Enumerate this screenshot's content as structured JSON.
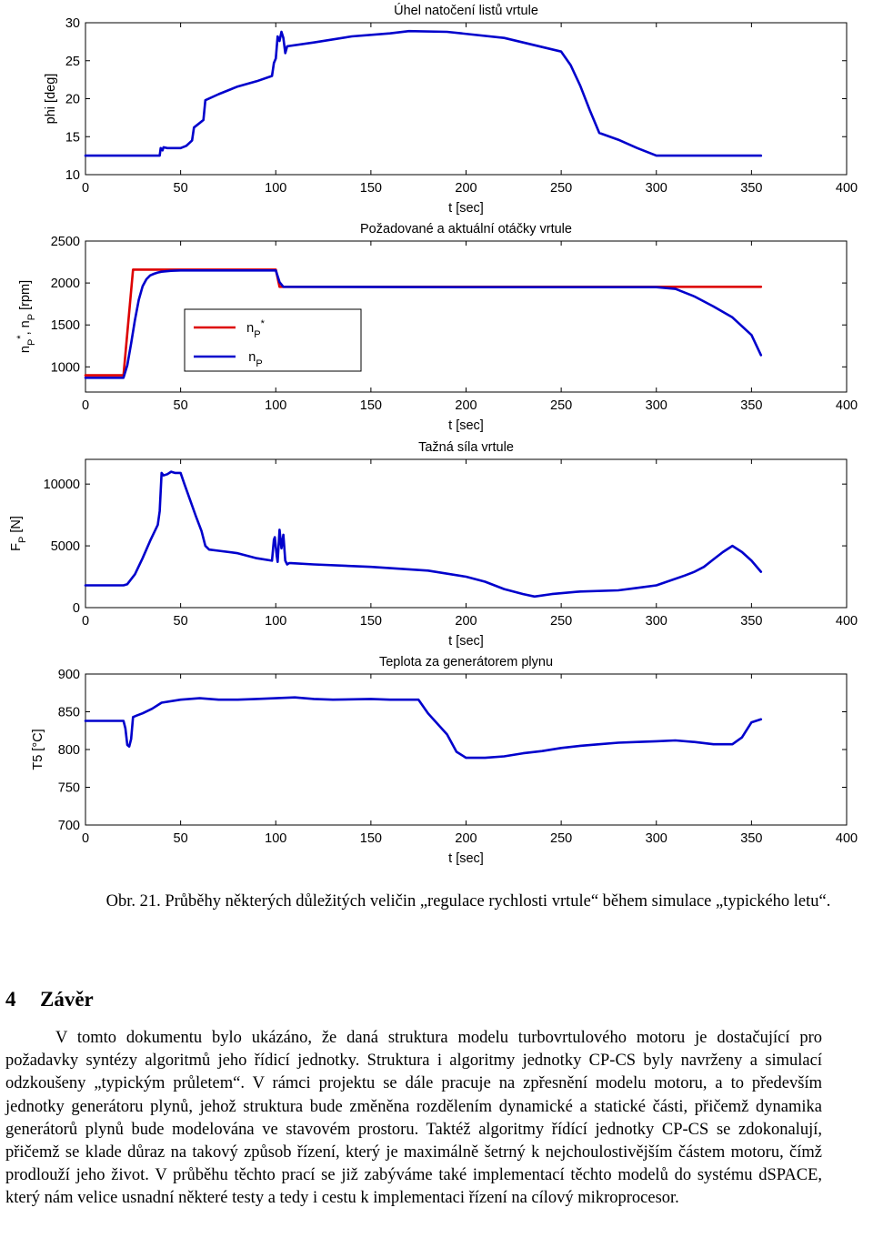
{
  "chart_data": [
    {
      "type": "line",
      "title": "Úhel natočení listů vrtule",
      "xlabel": "t [sec]",
      "ylabel": "phi [deg]",
      "xlim": [
        0,
        400
      ],
      "ylim": [
        10,
        30
      ],
      "xticks": [
        0,
        50,
        100,
        150,
        200,
        250,
        300,
        350,
        400
      ],
      "yticks": [
        10,
        15,
        20,
        25,
        30
      ],
      "grid": false,
      "series": [
        {
          "color": "#0000cc",
          "x": [
            0,
            39,
            39.5,
            40.5,
            41,
            43,
            50,
            53,
            56,
            57,
            60,
            62,
            63,
            70,
            80,
            90,
            98,
            99,
            100,
            101,
            102,
            103,
            104,
            105,
            106,
            120,
            140,
            160,
            170,
            190,
            220,
            230,
            240,
            250,
            255,
            260,
            265,
            270,
            280,
            290,
            300,
            320,
            340,
            355
          ],
          "y": [
            12.5,
            12.5,
            13.5,
            13.2,
            13.6,
            13.5,
            13.5,
            13.8,
            14.5,
            16.2,
            16.8,
            17.2,
            19.8,
            20.6,
            21.6,
            22.3,
            23.0,
            24.7,
            25.3,
            28.2,
            27.6,
            28.8,
            28.0,
            26.0,
            26.9,
            27.4,
            28.2,
            28.6,
            28.9,
            28.8,
            28.0,
            27.4,
            26.8,
            26.2,
            24.4,
            21.7,
            18.5,
            15.5,
            14.6,
            13.5,
            12.5,
            12.5,
            12.5,
            12.5
          ]
        }
      ]
    },
    {
      "type": "line",
      "title": "Požadované a aktuální otáčky vrtule",
      "xlabel": "t [sec]",
      "ylabel": "n_P*, n_P [rpm]",
      "xlim": [
        0,
        400
      ],
      "ylim": [
        700,
        2500
      ],
      "xticks": [
        0,
        50,
        100,
        150,
        200,
        250,
        300,
        350,
        400
      ],
      "yticks": [
        1000,
        1500,
        2000,
        2500
      ],
      "grid": false,
      "legend": {
        "position": "inside-left",
        "entries": [
          "n_P*",
          "n_P"
        ]
      },
      "series": [
        {
          "name": "n_P*",
          "color": "#dd0000",
          "x": [
            0,
            20,
            25,
            100,
            102,
            300,
            355
          ],
          "y": [
            900,
            900,
            2160,
            2160,
            1955,
            1955,
            1955
          ]
        },
        {
          "name": "n_P",
          "color": "#0000cc",
          "x": [
            0,
            20,
            22,
            24,
            26,
            28,
            30,
            32,
            34,
            36,
            38,
            40,
            45,
            50,
            100,
            102,
            104,
            200,
            300,
            310,
            320,
            330,
            340,
            350,
            355
          ],
          "y": [
            870,
            870,
            1020,
            1280,
            1560,
            1800,
            1960,
            2045,
            2090,
            2110,
            2125,
            2135,
            2145,
            2150,
            2150,
            2010,
            1955,
            1950,
            1950,
            1930,
            1840,
            1720,
            1590,
            1380,
            1140
          ]
        }
      ]
    },
    {
      "type": "line",
      "title": "Tažná síla vrtule",
      "xlabel": "t [sec]",
      "ylabel": "F_P [N]",
      "xlim": [
        0,
        400
      ],
      "ylim": [
        0,
        12000
      ],
      "xticks": [
        0,
        50,
        100,
        150,
        200,
        250,
        300,
        350,
        400
      ],
      "yticks": [
        0,
        5000,
        10000
      ],
      "grid": false,
      "series": [
        {
          "color": "#0000cc",
          "x": [
            0,
            20,
            22,
            26,
            30,
            34,
            38,
            39,
            40,
            41,
            43,
            45,
            47,
            50,
            52,
            55,
            58,
            61,
            63,
            65,
            70,
            80,
            90,
            98,
            99,
            99.5,
            100.5,
            101,
            102,
            103,
            104,
            105,
            106,
            107,
            108,
            120,
            150,
            180,
            200,
            210,
            220,
            230,
            236,
            245,
            260,
            280,
            290,
            300,
            315,
            320,
            325,
            330,
            335,
            340,
            345,
            350,
            355
          ],
          "y": [
            1800,
            1800,
            1900,
            2700,
            4000,
            5400,
            6700,
            7800,
            10900,
            10700,
            10800,
            11000,
            10900,
            10900,
            10000,
            8700,
            7400,
            6200,
            5000,
            4700,
            4600,
            4400,
            4000,
            3800,
            5500,
            5700,
            4200,
            3700,
            6300,
            4800,
            5900,
            3800,
            3500,
            3600,
            3600,
            3500,
            3300,
            3000,
            2500,
            2100,
            1500,
            1100,
            900,
            1100,
            1300,
            1400,
            1600,
            1800,
            2600,
            2900,
            3300,
            3900,
            4500,
            5000,
            4500,
            3800,
            2900
          ]
        }
      ]
    },
    {
      "type": "line",
      "title": "Teplota za generátorem plynu",
      "xlabel": "t [sec]",
      "ylabel": "T5 [°C]",
      "xlim": [
        0,
        400
      ],
      "ylim": [
        700,
        900
      ],
      "xticks": [
        0,
        50,
        100,
        150,
        200,
        250,
        300,
        350,
        400
      ],
      "yticks": [
        700,
        750,
        800,
        850,
        900
      ],
      "grid": false,
      "series": [
        {
          "color": "#0000cc",
          "x": [
            0,
            20,
            21,
            22,
            23,
            24,
            25,
            27,
            30,
            35,
            40,
            50,
            60,
            70,
            80,
            90,
            100,
            110,
            120,
            130,
            150,
            160,
            170,
            175,
            180,
            190,
            195,
            200,
            210,
            220,
            230,
            240,
            250,
            260,
            270,
            280,
            290,
            300,
            310,
            320,
            330,
            340,
            345,
            350,
            355
          ],
          "y": [
            838,
            838,
            828,
            806,
            804,
            814,
            843,
            845,
            848,
            854,
            862,
            866,
            868,
            866,
            866,
            867,
            868,
            869,
            867,
            866,
            867,
            866,
            866,
            866,
            848,
            820,
            797,
            789,
            789,
            791,
            795,
            798,
            802,
            805,
            807,
            809,
            810,
            811,
            812,
            810,
            807,
            807,
            816,
            836,
            840
          ]
        }
      ]
    }
  ],
  "caption": "Obr. 21. Průběhy některých důležitých veličin „regulace rychlosti vrtule“ během simulace „typického letu“.",
  "section": {
    "number": "4",
    "title": "Závěr",
    "paragraph": "V tomto dokumentu bylo ukázáno, že daná struktura modelu turbovrtulového motoru je dostačující pro požadavky syntézy algoritmů jeho řídicí jednotky. Struktura i algoritmy jednotky CP-CS byly navrženy a simulací odzkoušeny „typickým průletem“. V rámci projektu se dále pracuje na zpřesnění modelu motoru, a to především jednotky generátoru plynů, jehož struktura bude změněna rozdělením dynamické a statické části, přičemž dynamika generátorů plynů bude modelována ve stavovém prostoru. Taktéž algoritmy řídící jednotky CP-CS se zdokonalují, přičemž se klade důraz na takový způsob řízení, který je maximálně šetrný k nejchoulostivějším částem motoru, čímž prodlouží jeho život. V průběhu těchto prací se již zabýváme také implementací těchto modelů do systému dSPACE, který nám velice usnadní některé testy a tedy i cestu k implementaci řízení na cílový mikroprocesor."
  }
}
